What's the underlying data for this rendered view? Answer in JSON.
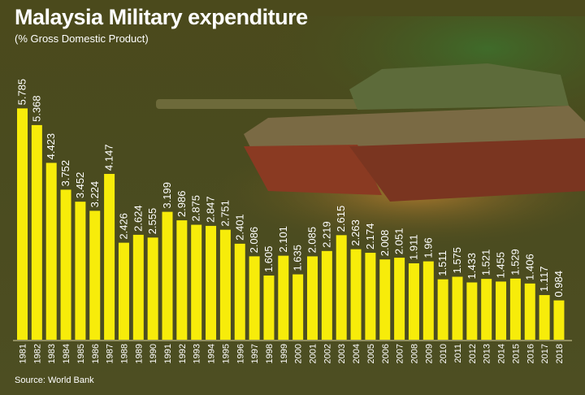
{
  "chart_data": {
    "type": "bar",
    "title": "Malaysia Military expenditure",
    "subtitle": "(% Gross Domestic Product)",
    "source": "Source: World Bank",
    "categories": [
      "1981",
      "1982",
      "1983",
      "1984",
      "1985",
      "1986",
      "1987",
      "1988",
      "1989",
      "1990",
      "1991",
      "1992",
      "1993",
      "1994",
      "1995",
      "1996",
      "1997",
      "1998",
      "1999",
      "2000",
      "2001",
      "2002",
      "2003",
      "2004",
      "2005",
      "2006",
      "2007",
      "2008",
      "2009",
      "2010",
      "2011",
      "2012",
      "2013",
      "2014",
      "2015",
      "2016",
      "2017",
      "2018"
    ],
    "values": [
      5.785,
      5.368,
      4.423,
      3.752,
      3.452,
      3.224,
      4.147,
      2.426,
      2.624,
      2.555,
      3.199,
      2.986,
      2.875,
      2.847,
      2.751,
      2.401,
      2.086,
      1.605,
      2.101,
      1.635,
      2.085,
      2.219,
      2.615,
      2.263,
      2.174,
      2.008,
      2.051,
      1.911,
      1.96,
      1.511,
      1.575,
      1.433,
      1.521,
      1.455,
      1.529,
      1.406,
      1.117,
      0.984
    ],
    "labels": [
      "5.785",
      "5.368",
      "4.423",
      "3.752",
      "3.452",
      "3.224",
      "4.147",
      "2.426",
      "2.624",
      "2.555",
      "3.199",
      "2.986",
      "2.875",
      "2.847",
      "2.751",
      "2.401",
      "2.086",
      "1.605",
      "2.101",
      "1.635",
      "2.085",
      "2.219",
      "2.615",
      "2.263",
      "2.174",
      "2.008",
      "2.051",
      "1.911",
      "1.96",
      "1.511",
      "1.575",
      "1.433",
      "1.521",
      "1.455",
      "1.529",
      "1.406",
      "1.117",
      "0.984"
    ],
    "ylim": [
      0,
      6
    ],
    "grid": false,
    "bar_color": "#f7ec0a",
    "text_color": "#ffffff",
    "background_color": "#4b4a1c"
  }
}
